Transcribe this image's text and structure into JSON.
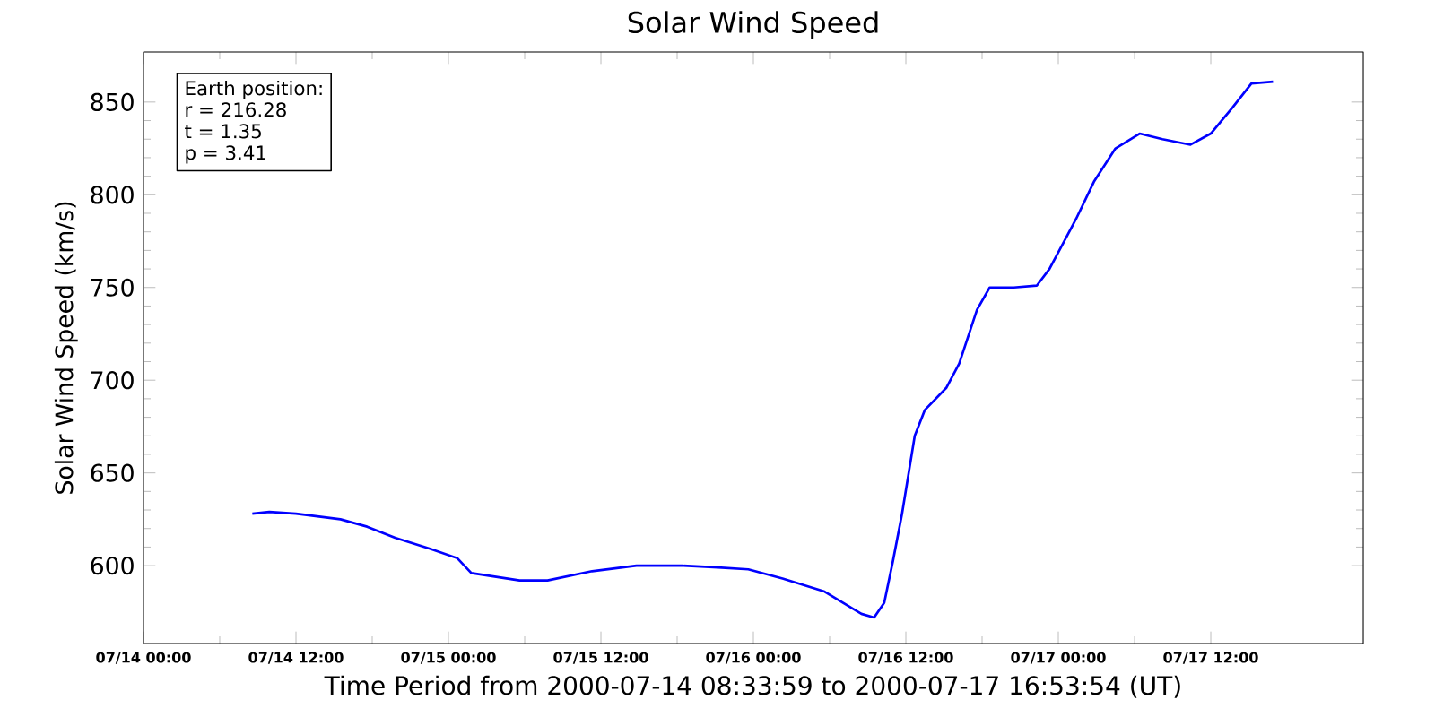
{
  "chart_data": {
    "type": "line",
    "title": "Solar Wind Speed",
    "xlabel": "Time Period from 2000-07-14 08:33:59 to 2000-07-17 16:53:54 (UT)",
    "ylabel": "Solar Wind Speed (km/s)",
    "annotations": [
      "Earth position:",
      "r = 216.28",
      "t = 1.35",
      "p = 3.41"
    ],
    "x": [
      "2000-07-14T08:34",
      "2000-07-14T09:54",
      "2000-07-14T12:00",
      "2000-07-14T15:30",
      "2000-07-14T17:36",
      "2000-07-14T19:48",
      "2000-07-14T22:36",
      "2000-07-15T00:42",
      "2000-07-15T01:48",
      "2000-07-15T05:36",
      "2000-07-15T07:48",
      "2000-07-15T11:18",
      "2000-07-15T14:48",
      "2000-07-15T18:24",
      "2000-07-15T21:12",
      "2000-07-15T23:36",
      "2000-07-16T02:18",
      "2000-07-16T05:36",
      "2000-07-16T08:30",
      "2000-07-16T09:30",
      "2000-07-16T10:18",
      "2000-07-16T11:00",
      "2000-07-16T11:42",
      "2000-07-16T12:42",
      "2000-07-16T13:30",
      "2000-07-16T15:12",
      "2000-07-16T16:12",
      "2000-07-16T17:36",
      "2000-07-16T18:36",
      "2000-07-16T20:30",
      "2000-07-16T22:18",
      "2000-07-16T23:18",
      "2000-07-17T01:24",
      "2000-07-17T02:48",
      "2000-07-17T04:30",
      "2000-07-17T06:24",
      "2000-07-17T08:12",
      "2000-07-17T10:24",
      "2000-07-17T12:00",
      "2000-07-17T13:42",
      "2000-07-17T15:12",
      "2000-07-17T16:54"
    ],
    "series": [
      {
        "color": "#0000ff",
        "values": [
          628,
          629,
          628,
          625,
          621,
          615,
          609,
          604,
          596,
          592,
          592,
          597,
          600,
          600,
          599,
          598,
          593,
          586,
          574,
          572,
          580,
          603,
          628,
          670,
          684,
          696,
          709,
          738,
          750,
          750,
          751,
          760,
          787,
          807,
          825,
          833,
          830,
          827,
          833,
          847,
          860,
          861
        ]
      }
    ],
    "xlim": [
      "2000-07-14T00:00",
      "2000-07-18T00:00"
    ],
    "xticks": [
      {
        "value": "2000-07-14T00:00",
        "label": "07/14 00:00"
      },
      {
        "value": "2000-07-14T12:00",
        "label": "07/14 12:00"
      },
      {
        "value": "2000-07-15T00:00",
        "label": "07/15 00:00"
      },
      {
        "value": "2000-07-15T12:00",
        "label": "07/15 12:00"
      },
      {
        "value": "2000-07-16T00:00",
        "label": "07/16 00:00"
      },
      {
        "value": "2000-07-16T12:00",
        "label": "07/16 12:00"
      },
      {
        "value": "2000-07-17T00:00",
        "label": "07/17 00:00"
      },
      {
        "value": "2000-07-17T12:00",
        "label": "07/17 12:00"
      }
    ],
    "ylim": [
      558,
      877
    ],
    "yticks": [
      600,
      650,
      700,
      750,
      800,
      850
    ],
    "grid": false,
    "marker": "none",
    "line_style": "solid"
  }
}
